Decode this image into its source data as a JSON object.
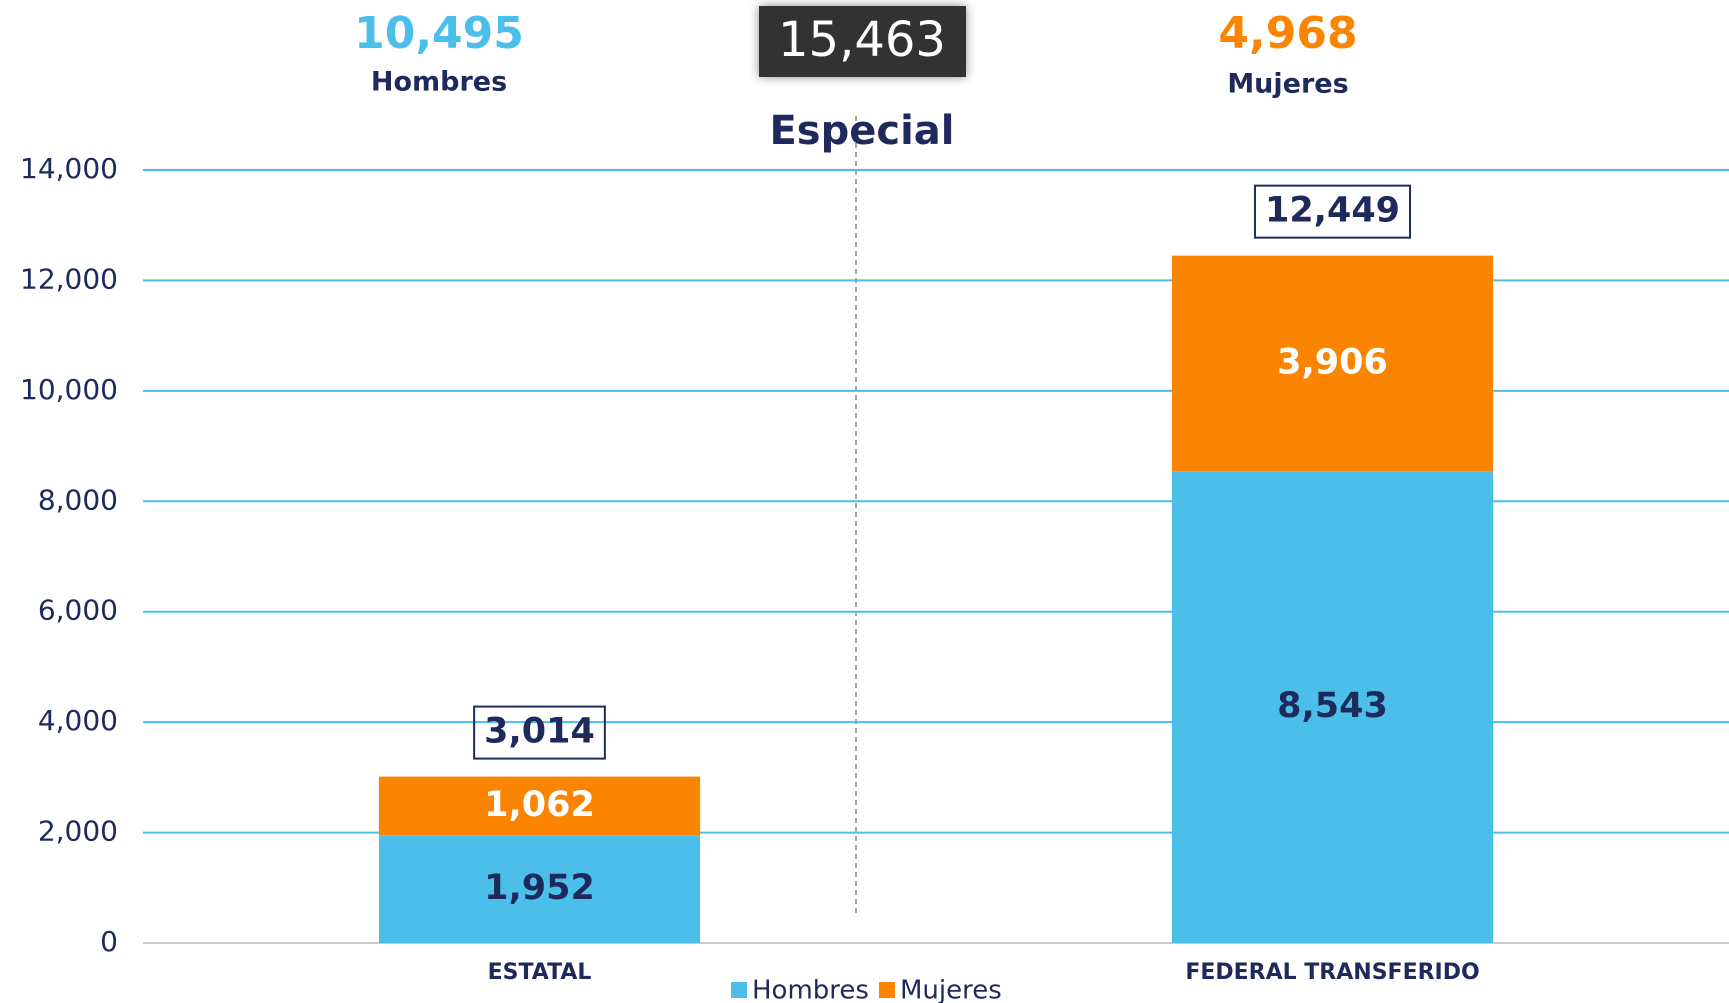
{
  "chart_data": {
    "type": "stacked_bar",
    "summary": [
      {
        "name": "Hombres",
        "value": 10495,
        "label": "10,495",
        "color": "#4bbfea"
      },
      {
        "name": "Mujeres",
        "value": 4968,
        "label": "4,968",
        "color": "#fb8500"
      }
    ],
    "grand_total": 15463,
    "grand_total_label": "15,463",
    "title": "Especial",
    "categories": [
      "ESTATAL",
      "FEDERAL TRANSFERIDO"
    ],
    "series": [
      {
        "name": "Hombres",
        "color": "#4bbfea",
        "values": [
          1952,
          8543
        ],
        "value_labels": [
          "1,952",
          "8,543"
        ]
      },
      {
        "name": "Mujeres",
        "color": "#fb8500",
        "values": [
          1062,
          3906
        ],
        "value_labels": [
          "1,062",
          "3,906"
        ]
      }
    ],
    "totals": [
      3014,
      12449
    ],
    "total_labels": [
      "3,014",
      "12,449"
    ],
    "ylim": [
      0,
      14000
    ],
    "yticks": [
      0,
      {
        "value": 2000,
        "label": "2,000"
      },
      {
        "value": 4000,
        "label": "4,000"
      },
      {
        "value": 6000,
        "label": "6,000"
      },
      {
        "value": 8000,
        "label": "8,000"
      },
      {
        "value": 10000,
        "label": "10,000"
      },
      {
        "value": 12000,
        "label": "12,000"
      },
      {
        "value": 14000,
        "label": "14,000"
      }
    ],
    "grid": true
  }
}
